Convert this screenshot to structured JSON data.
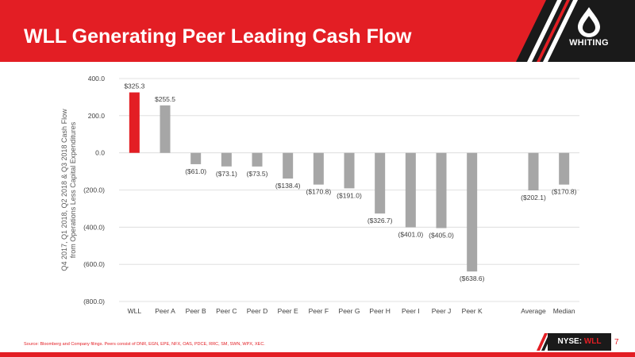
{
  "header": {
    "title": "WLL Generating Peer Leading Cash Flow",
    "logo_text": "WHITING",
    "color": "#e31e24"
  },
  "chart_data": {
    "type": "bar",
    "categories": [
      "WLL",
      "Peer A",
      "Peer B",
      "Peer C",
      "Peer D",
      "Peer E",
      "Peer F",
      "Peer G",
      "Peer H",
      "Peer I",
      "Peer J",
      "Peer K",
      "",
      "Average",
      "Median"
    ],
    "values": [
      325.3,
      255.5,
      -61.0,
      -73.1,
      -73.5,
      -138.4,
      -170.8,
      -191.0,
      -326.7,
      -401.0,
      -405.0,
      -638.6,
      null,
      -202.1,
      -170.8
    ],
    "data_labels": [
      "$325.3",
      "$255.5",
      "($61.0)",
      "($73.1)",
      "($73.5)",
      "($138.4)",
      "($170.8)",
      "($191.0)",
      "($326.7)",
      "($401.0)",
      "($405.0)",
      "($638.6)",
      "",
      "($202.1)",
      "($170.8)"
    ],
    "ylabel_line1": "Q4 2017, Q1 2018, Q2 2018 & Q3 2018 Cash Flow",
    "ylabel_line2": "from Operations Less Capital Expenditures",
    "ylim": [
      -800,
      400
    ],
    "yticks": [
      400,
      200,
      0,
      -200,
      -400,
      -600,
      -800
    ],
    "ytick_labels": [
      "400.0",
      "200.0",
      "0.0",
      "(200.0)",
      "(400.0)",
      "(600.0)",
      "(800.0)"
    ],
    "grid": true,
    "highlight_color": "#e31e24",
    "bar_color": "#a6a6a6"
  },
  "footer": {
    "source": "Source: Bloomberg and Company filings. Peers consist of DNR, EGN, EPE, NFX, OAS, PDCE, RRC, SM, SWN, WPX, XEC.",
    "ticker_prefix": "NYSE: ",
    "ticker_symbol": "WLL",
    "page_number": "7"
  }
}
